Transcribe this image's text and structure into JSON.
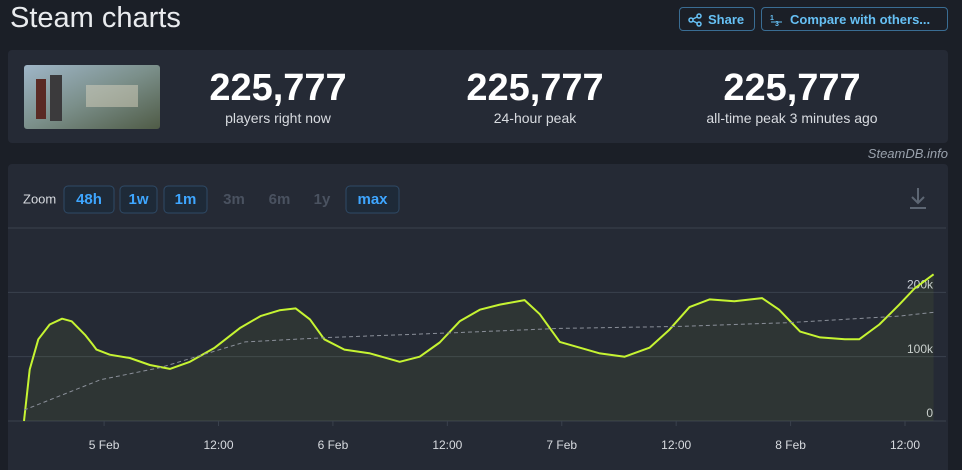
{
  "header": {
    "title": "Steam charts",
    "share": "Share",
    "compare": "Compare with others..."
  },
  "stats": [
    {
      "value": "225,777",
      "label": "players right now"
    },
    {
      "value": "225,777",
      "label": "24-hour peak"
    },
    {
      "value": "225,777",
      "label": "all-time peak 3 minutes ago"
    }
  ],
  "credit": "SteamDB.info",
  "zoom_label": "Zoom",
  "zoom": [
    {
      "label": "48h",
      "enabled": true
    },
    {
      "label": "1w",
      "enabled": true
    },
    {
      "label": "1m",
      "enabled": true
    },
    {
      "label": "3m",
      "enabled": false
    },
    {
      "label": "6m",
      "enabled": false
    },
    {
      "label": "1y",
      "enabled": false
    },
    {
      "label": "max",
      "enabled": true
    }
  ],
  "chart_data": {
    "type": "line",
    "xlim": [
      -8.4,
      88.3
    ],
    "xticks": [
      {
        "value": 0,
        "label": "5 Feb"
      },
      {
        "value": 12,
        "label": "12:00"
      },
      {
        "value": 24,
        "label": "6 Feb"
      },
      {
        "value": 36,
        "label": "12:00"
      },
      {
        "value": 48,
        "label": "7 Feb"
      },
      {
        "value": 60,
        "label": "12:00"
      },
      {
        "value": 72,
        "label": "8 Feb"
      },
      {
        "value": 84,
        "label": "12:00"
      }
    ],
    "ylim": [
      0,
      300000
    ],
    "yticks": [
      0,
      {
        "value": 100000,
        "label": "100k"
      },
      {
        "value": 200000,
        "label": "200k"
      }
    ],
    "grid": true,
    "series": [
      {
        "color": "#c6f432",
        "style": "solid",
        "x": [
          -8.4,
          -7.8,
          -6.9,
          -5.7,
          -4.4,
          -3.4,
          -2.0,
          -1.2,
          -0.8,
          0.6,
          2.7,
          4.8,
          6.9,
          9.0,
          11.6,
          14.3,
          16.4,
          18.4,
          20.1,
          21.6,
          23.1,
          25.2,
          27.9,
          31.0,
          33.1,
          35.2,
          37.3,
          39.4,
          41.5,
          44.1,
          45.7,
          47.8,
          49.9,
          52.0,
          54.6,
          57.2,
          59.3,
          61.4,
          63.5,
          66.1,
          69.0,
          70.8,
          73.0,
          75.1,
          77.7,
          79.2,
          81.3,
          83.4,
          85.0,
          87.0
        ],
        "values": [
          0,
          80000,
          127000,
          150000,
          159000,
          155000,
          134000,
          119000,
          111000,
          103000,
          98000,
          87000,
          81000,
          92000,
          114000,
          145000,
          163000,
          172000,
          175000,
          158000,
          127000,
          111000,
          105000,
          92000,
          100000,
          122000,
          155000,
          173000,
          181000,
          188000,
          166000,
          123000,
          114000,
          105000,
          100000,
          114000,
          142000,
          177000,
          189000,
          186000,
          191000,
          173000,
          139000,
          130000,
          127000,
          127000,
          150000,
          181000,
          206000,
          228000
        ]
      },
      {
        "color": "#8a8f99",
        "style": "dashed",
        "x": [
          -8.4,
          -0.4,
          5.9,
          14.8,
          23.8,
          36.3,
          47.8,
          60.4,
          71.9,
          83.4,
          87.0
        ],
        "values": [
          17000,
          64000,
          83000,
          123000,
          130000,
          137000,
          144000,
          147000,
          153000,
          163000,
          169000
        ]
      }
    ]
  }
}
